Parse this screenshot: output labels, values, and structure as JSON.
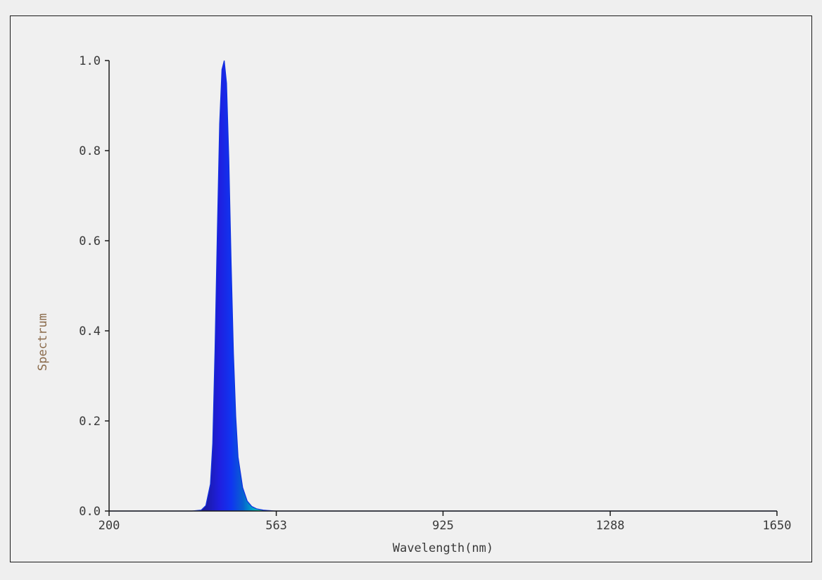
{
  "chart_data": {
    "type": "area",
    "title": "",
    "xlabel": "Wavelength(nm)",
    "ylabel": "Spectrum",
    "xlim": [
      200,
      1650
    ],
    "ylim": [
      0,
      1.0
    ],
    "x_ticks": [
      "200",
      "563",
      "925",
      "1288",
      "1650"
    ],
    "y_ticks": [
      "0.0",
      "0.2",
      "0.4",
      "0.6",
      "0.8",
      "1.0"
    ],
    "grid": false,
    "legend": "none",
    "series": [
      {
        "x": [
          200,
          380,
          400,
          410,
          420,
          425,
          430,
          435,
          440,
          445,
          450,
          455,
          460,
          465,
          470,
          475,
          480,
          490,
          500,
          510,
          520,
          535,
          560,
          600,
          1650
        ],
        "y": [
          0.0,
          0.0,
          0.002,
          0.012,
          0.06,
          0.15,
          0.36,
          0.62,
          0.86,
          0.98,
          1.0,
          0.95,
          0.78,
          0.55,
          0.35,
          0.21,
          0.12,
          0.052,
          0.022,
          0.01,
          0.005,
          0.002,
          0.0,
          0.0,
          0.0
        ]
      }
    ],
    "colors": {
      "axis": "#1a1a1a",
      "peak": "#1030e0",
      "mid": "#0060c0",
      "tail": "#30d060"
    }
  }
}
